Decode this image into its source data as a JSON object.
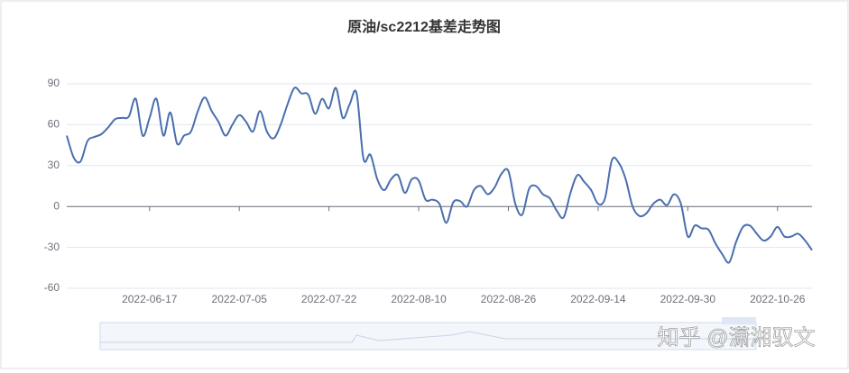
{
  "chart_data": {
    "type": "line",
    "title": "原油/sc2212基差走势图",
    "categories": [
      null,
      null,
      null,
      null,
      null,
      null,
      null,
      null,
      null,
      null,
      null,
      null,
      "2022-06-17",
      null,
      null,
      null,
      null,
      null,
      null,
      null,
      null,
      null,
      null,
      null,
      null,
      "2022-07-05",
      null,
      null,
      null,
      null,
      null,
      null,
      null,
      null,
      null,
      null,
      null,
      null,
      "2022-07-22",
      null,
      null,
      null,
      null,
      null,
      null,
      null,
      null,
      null,
      null,
      null,
      null,
      "2022-08-10",
      null,
      null,
      null,
      null,
      null,
      null,
      null,
      null,
      null,
      null,
      null,
      null,
      "2022-08-26",
      null,
      null,
      null,
      null,
      null,
      null,
      null,
      null,
      null,
      null,
      null,
      null,
      "2022-09-14",
      null,
      null,
      null,
      null,
      null,
      null,
      null,
      null,
      null,
      null,
      null,
      null,
      "2022-09-30",
      null,
      null,
      null,
      null,
      null,
      null,
      null,
      null,
      null,
      null,
      null,
      null,
      "2022-10-26",
      null,
      null,
      null,
      null,
      null
    ],
    "values": [
      52,
      36,
      33,
      48,
      51,
      53,
      58,
      64,
      65,
      66,
      79,
      52,
      65,
      79,
      52,
      69,
      46,
      52,
      55,
      70,
      80,
      70,
      62,
      52,
      60,
      67,
      62,
      55,
      70,
      55,
      50,
      60,
      75,
      87,
      83,
      82,
      68,
      79,
      72,
      87,
      65,
      75,
      83,
      35,
      38,
      20,
      12,
      20,
      23,
      10,
      20,
      19,
      5,
      5,
      2,
      -12,
      3,
      4,
      0,
      12,
      15,
      9,
      14,
      24,
      26,
      2,
      -6,
      13,
      15,
      9,
      6,
      -3,
      -8,
      10,
      23,
      18,
      12,
      2,
      6,
      34,
      32,
      20,
      0,
      -7,
      -5,
      2,
      5,
      1,
      9,
      2,
      -22,
      -14,
      -16,
      -17,
      -27,
      -35,
      -41,
      -26,
      -15,
      -14,
      -20,
      -25,
      -22,
      -15,
      -22,
      -22,
      -20,
      -25,
      -32
    ],
    "color": "#4a6fae",
    "ylim": [
      -60,
      90
    ],
    "yticks": [
      -60,
      -30,
      0,
      30,
      60,
      90
    ],
    "grid": true,
    "watermark": "知乎 @潇湘驭文"
  }
}
